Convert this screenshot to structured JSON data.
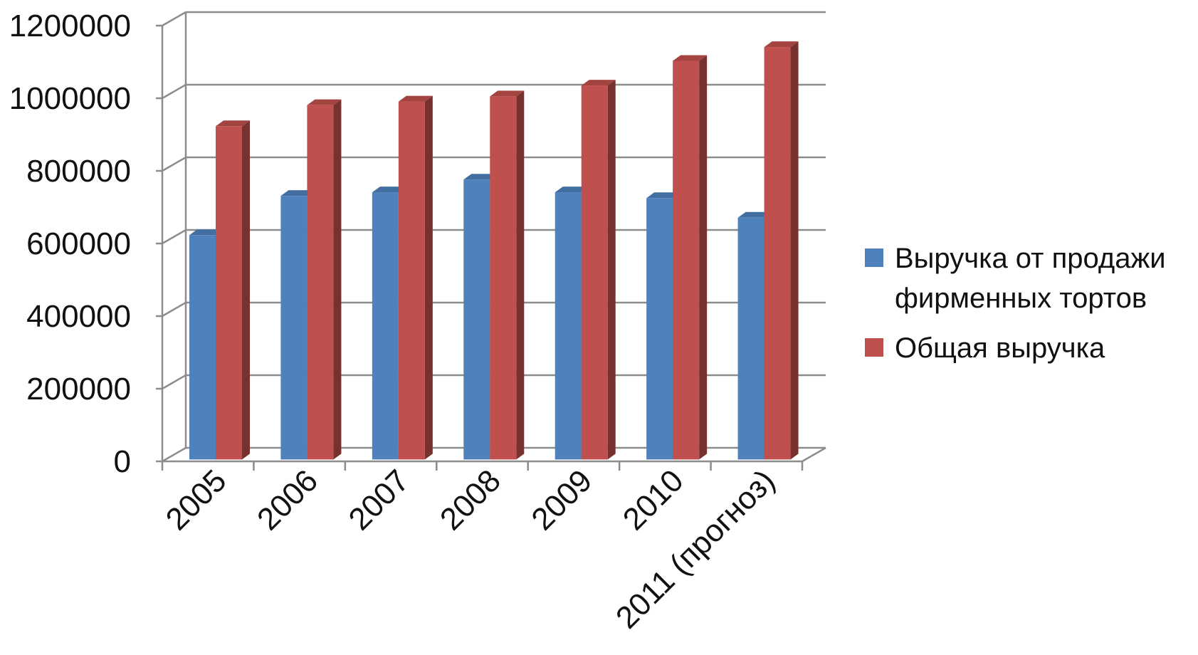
{
  "chart_data": {
    "type": "bar",
    "title": "",
    "xlabel": "",
    "ylabel": "",
    "ylim": [
      0,
      1200000
    ],
    "yticks": [
      "0",
      "200000",
      "400000",
      "600000",
      "800000",
      "1000000",
      "1200000"
    ],
    "categories": [
      "2005",
      "2006",
      "2007",
      "2008",
      "2009",
      "2010",
      "2011 (прогноз)"
    ],
    "series": [
      {
        "name": "Выручка от продажи фирменных тортов",
        "color": "#4F81BD",
        "values": [
          610000,
          718000,
          728000,
          763000,
          728000,
          712000,
          658000
        ]
      },
      {
        "name": "Общая выручка",
        "color": "#C0504D",
        "values": [
          910000,
          968000,
          978000,
          992000,
          1022000,
          1090000,
          1128000
        ]
      }
    ],
    "grid": true,
    "legend_position": "right"
  }
}
